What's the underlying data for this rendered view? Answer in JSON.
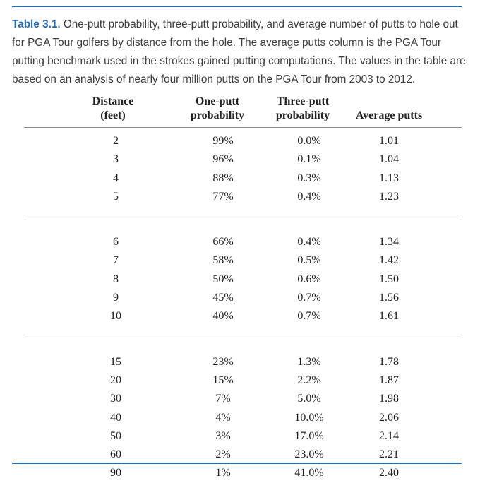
{
  "caption": {
    "label": "Table 3.1.",
    "text": " One-putt probability, three-putt probability, and average number of putts to hole out for PGA Tour golfers by distance from the hole. The average putts column is the PGA Tour putting benchmark used in the strokes gained putting computations. The values in the table are based on an analysis of nearly four million putts on the PGA Tour from 2003 to 2012."
  },
  "headers": {
    "distance": [
      "Distance",
      "(feet)"
    ],
    "one_putt": [
      "One-putt",
      "probability"
    ],
    "three_putt": [
      "Three-putt",
      "probability"
    ],
    "avg_putts": "Average putts"
  },
  "groups": [
    [
      [
        "2",
        "99%",
        "0.0%",
        "1.01"
      ],
      [
        "3",
        "96%",
        "0.1%",
        "1.04"
      ],
      [
        "4",
        "88%",
        "0.3%",
        "1.13"
      ],
      [
        "5",
        "77%",
        "0.4%",
        "1.23"
      ]
    ],
    [
      [
        "6",
        "66%",
        "0.4%",
        "1.34"
      ],
      [
        "7",
        "58%",
        "0.5%",
        "1.42"
      ],
      [
        "8",
        "50%",
        "0.6%",
        "1.50"
      ],
      [
        "9",
        "45%",
        "0.7%",
        "1.56"
      ],
      [
        "10",
        "40%",
        "0.7%",
        "1.61"
      ]
    ],
    [
      [
        "15",
        "23%",
        "1.3%",
        "1.78"
      ],
      [
        "20",
        "15%",
        "2.2%",
        "1.87"
      ],
      [
        "30",
        "7%",
        "5.0%",
        "1.98"
      ],
      [
        "40",
        "4%",
        "10.0%",
        "2.06"
      ],
      [
        "50",
        "3%",
        "17.0%",
        "2.14"
      ],
      [
        "60",
        "2%",
        "23.0%",
        "2.21"
      ],
      [
        "90",
        "1%",
        "41.0%",
        "2.40"
      ]
    ]
  ],
  "colors": {
    "accent": "#2b6cb0",
    "rule": "#8a8a8a"
  }
}
